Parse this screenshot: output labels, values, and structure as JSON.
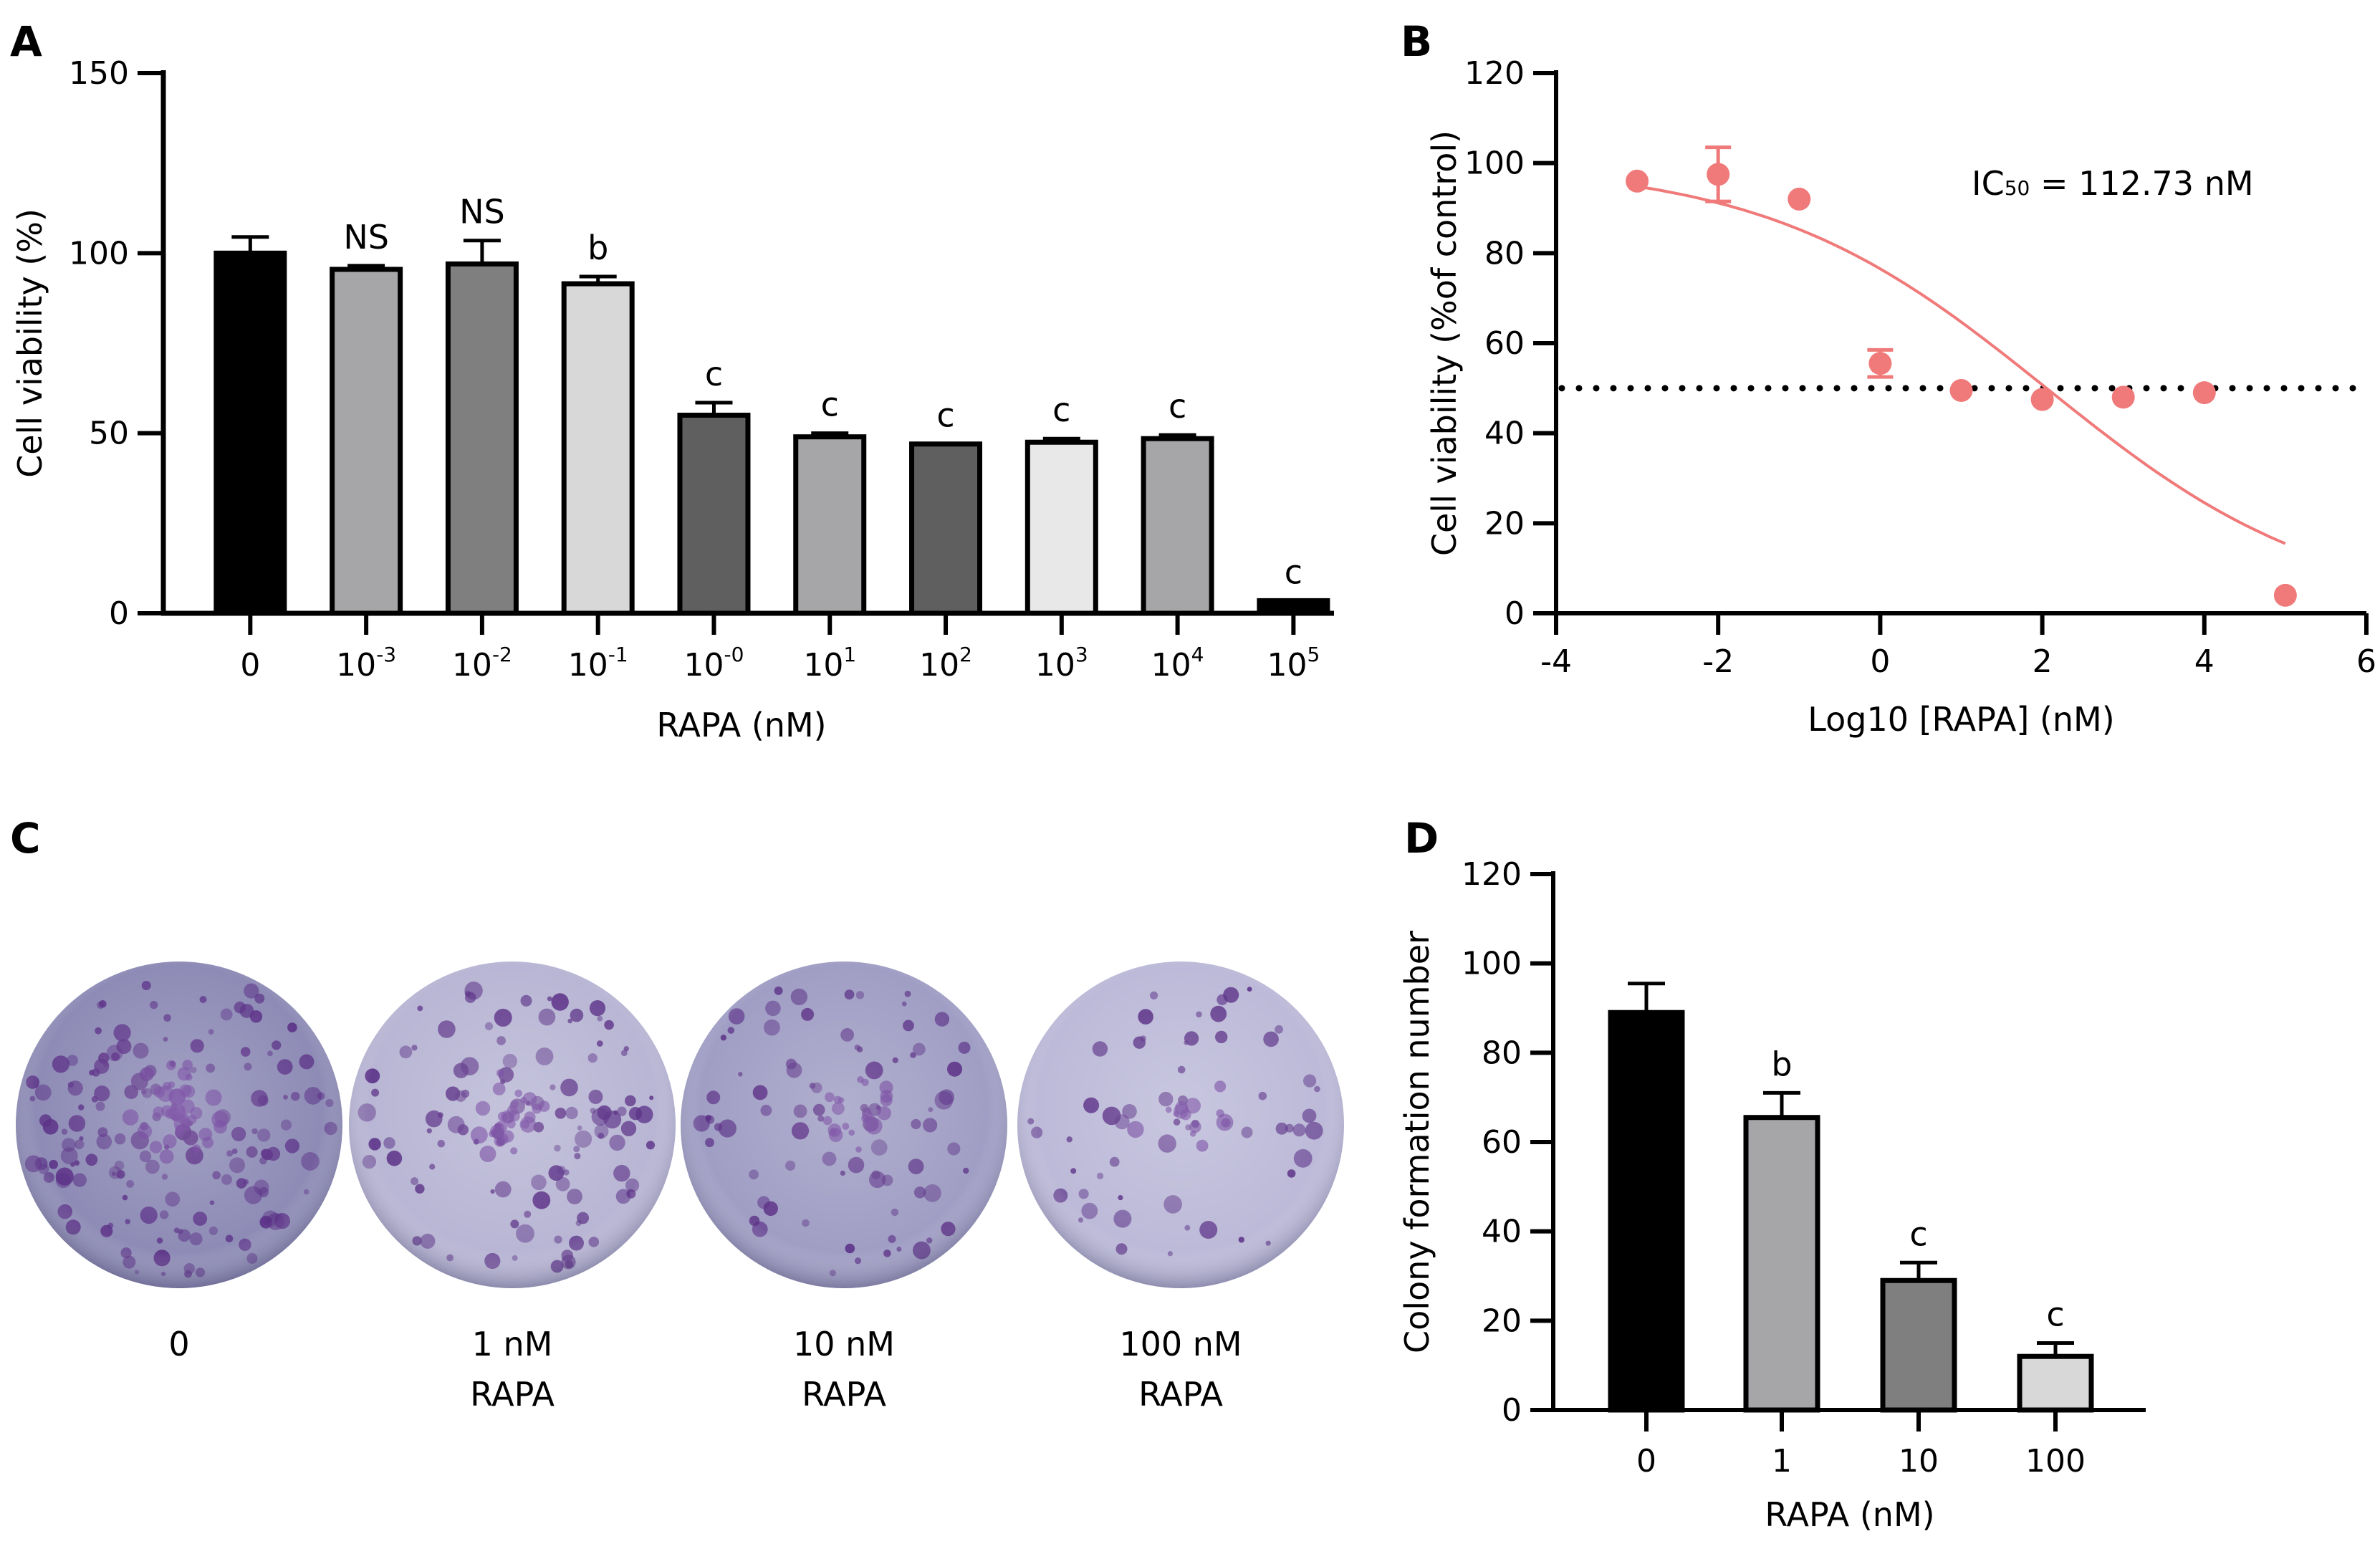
{
  "panels": {
    "A": "A",
    "B": "B",
    "C": "C",
    "D": "D"
  },
  "chart_data": [
    {
      "panel": "A",
      "type": "bar",
      "xlabel": "RAPA (nM)",
      "ylabel": "Cell viability (%)",
      "ylim": [
        0,
        150
      ],
      "yticks": [
        "0",
        "50",
        "100",
        "150"
      ],
      "categories": [
        {
          "base": "0",
          "exp": ""
        },
        {
          "base": "10",
          "exp": "-3"
        },
        {
          "base": "10",
          "exp": "-2"
        },
        {
          "base": "10",
          "exp": "-1"
        },
        {
          "base": "10",
          "exp": "-0"
        },
        {
          "base": "10",
          "exp": "1"
        },
        {
          "base": "10",
          "exp": "2"
        },
        {
          "base": "10",
          "exp": "3"
        },
        {
          "base": "10",
          "exp": "4"
        },
        {
          "base": "10",
          "exp": "5"
        }
      ],
      "values": [
        100,
        95.5,
        97,
        91.5,
        55,
        49,
        47,
        47.5,
        48.5,
        3.5
      ],
      "errors": [
        4.5,
        1,
        6.5,
        2,
        3.5,
        1,
        0,
        1,
        1,
        0
      ],
      "annotations": [
        "",
        "NS",
        "NS",
        "b",
        "c",
        "c",
        "c",
        "c",
        "c",
        "c"
      ],
      "bar_colors": [
        "#000000",
        "#a6a6a9",
        "#7f7f7f",
        "#d8d8d8",
        "#5f5f5f",
        "#a6a6a9",
        "#5f5f5f",
        "#e8e8e8",
        "#a6a6a9",
        "#000000"
      ]
    },
    {
      "panel": "B",
      "type": "scatter",
      "xlabel": "Log10 [RAPA] (nM)",
      "ylabel": "Cell viability (%of control)",
      "xlim": [
        -4,
        6
      ],
      "ylim": [
        0,
        120
      ],
      "xticks": [
        "-4",
        "-2",
        "0",
        "2",
        "4",
        "6"
      ],
      "yticks": [
        "0",
        "20",
        "40",
        "60",
        "80",
        "100",
        "120"
      ],
      "annotation_prefix": "IC",
      "annotation_sub": "50",
      "annotation_rest": " = 112.73 nM",
      "reference_line_y": 50,
      "points": [
        {
          "x": -3,
          "y": 96,
          "err": 0
        },
        {
          "x": -2,
          "y": 97.5,
          "err": 6
        },
        {
          "x": -1,
          "y": 92,
          "err": 0
        },
        {
          "x": 0,
          "y": 55.5,
          "err": 3
        },
        {
          "x": 1,
          "y": 49.5,
          "err": 0
        },
        {
          "x": 2,
          "y": 47.5,
          "err": 0
        },
        {
          "x": 3,
          "y": 48,
          "err": 0
        },
        {
          "x": 4,
          "y": 49,
          "err": 0
        },
        {
          "x": 5,
          "y": 4,
          "err": 0
        }
      ],
      "fit": {
        "top": 100,
        "bottom": 0,
        "log_ic50": 2.052,
        "hill": 0.25,
        "x_range": [
          -3,
          5
        ]
      },
      "color": "#f07a7a"
    },
    {
      "panel": "D",
      "type": "bar",
      "xlabel": "RAPA (nM)",
      "ylabel": "Colony formation number",
      "ylim": [
        0,
        120
      ],
      "yticks": [
        "0",
        "20",
        "40",
        "60",
        "80",
        "100",
        "120"
      ],
      "categories": [
        "0",
        "1",
        "10",
        "100"
      ],
      "values": [
        89,
        65.5,
        29,
        12
      ],
      "errors": [
        6.5,
        5.5,
        4,
        3
      ],
      "annotations": [
        "",
        "b",
        "c",
        "c"
      ],
      "bar_colors": [
        "#000000",
        "#a6a6a9",
        "#7f7f7f",
        "#d8d8d8"
      ]
    }
  ],
  "panel_c": {
    "dishes": [
      {
        "line1": "0",
        "line2": "",
        "tint": "#8e8cb6",
        "density": 1.0
      },
      {
        "line1": "1 nM",
        "line2": "RAPA",
        "tint": "#b8b6d4",
        "density": 0.7
      },
      {
        "line1": "10 nM",
        "line2": "RAPA",
        "tint": "#a09ec4",
        "density": 0.5
      },
      {
        "line1": "100 nM",
        "line2": "RAPA",
        "tint": "#bcbad8",
        "density": 0.35
      }
    ]
  }
}
